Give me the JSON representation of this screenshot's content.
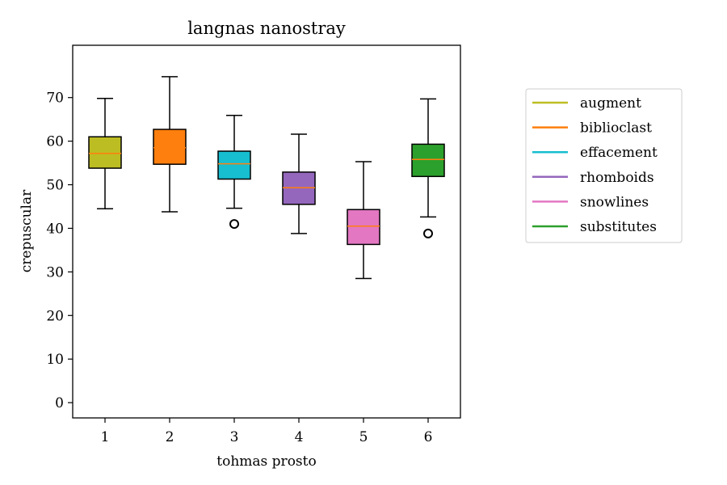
{
  "chart_data": {
    "type": "box",
    "title": "langnas nanostray",
    "xlabel": "tohmas prosto",
    "ylabel": "crepuscular",
    "ylim": [
      -3.5,
      82
    ],
    "xlim": [
      0.5,
      6.5
    ],
    "yticks": [
      0,
      10,
      20,
      30,
      40,
      50,
      60,
      70
    ],
    "categories": [
      "1",
      "2",
      "3",
      "4",
      "5",
      "6"
    ],
    "grid": false,
    "legend_position": "right, outside plot",
    "series": [
      {
        "name": "augment",
        "color": "#bcbd22",
        "whisker_low": 44.5,
        "q1": 53.8,
        "median": 57.2,
        "q3": 61.0,
        "whisker_high": 69.8,
        "outliers": []
      },
      {
        "name": "biblioclast",
        "color": "#ff7f0e",
        "whisker_low": 43.8,
        "q1": 54.7,
        "median": 58.5,
        "q3": 62.7,
        "whisker_high": 74.8,
        "outliers": []
      },
      {
        "name": "effacement",
        "color": "#17becf",
        "whisker_low": 44.6,
        "q1": 51.3,
        "median": 54.8,
        "q3": 57.7,
        "whisker_high": 65.9,
        "outliers": [
          41.0
        ]
      },
      {
        "name": "rhomboids",
        "color": "#9467bd",
        "whisker_low": 38.8,
        "q1": 45.5,
        "median": 49.3,
        "q3": 52.9,
        "whisker_high": 61.6,
        "outliers": []
      },
      {
        "name": "snowlines",
        "color": "#e377c2",
        "whisker_low": 28.5,
        "q1": 36.3,
        "median": 40.5,
        "q3": 44.3,
        "whisker_high": 55.3,
        "outliers": []
      },
      {
        "name": "substitutes",
        "color": "#2ca02c",
        "whisker_low": 42.6,
        "q1": 51.9,
        "median": 55.8,
        "q3": 59.3,
        "whisker_high": 69.7,
        "outliers": [
          38.8
        ]
      }
    ],
    "median_color": "#ff7f0e"
  }
}
